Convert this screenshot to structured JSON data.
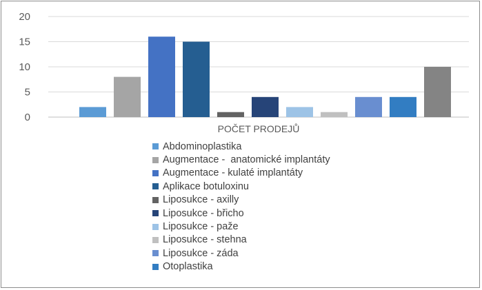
{
  "chart_data": {
    "type": "bar",
    "category_axis_label": "POČET PRODEJŮ",
    "ylim": [
      0,
      20
    ],
    "yticks": [
      "0",
      "5",
      "10",
      "15",
      "20"
    ],
    "grid": true,
    "legend_position": "bottom",
    "series": [
      {
        "name": "Abdominoplastika",
        "value": 2,
        "color": "#5b9bd5"
      },
      {
        "name": "Augmentace -  anatomické implantáty",
        "value": 8,
        "color": "#a5a5a5"
      },
      {
        "name": "Augmentace - kulaté implantáty",
        "value": 16,
        "color": "#4472c4"
      },
      {
        "name": "Aplikace botuloxinu",
        "value": 15,
        "color": "#255e91"
      },
      {
        "name": "Liposukce - axilly",
        "value": 1,
        "color": "#636363"
      },
      {
        "name": "Liposukce - břicho",
        "value": 4,
        "color": "#264478"
      },
      {
        "name": "Liposukce - paže",
        "value": 2,
        "color": "#9dc3e6"
      },
      {
        "name": "Liposukce - stehna",
        "value": 1,
        "color": "#c0c0c0"
      },
      {
        "name": "Liposukce - záda",
        "value": 4,
        "color": "#698ed0"
      },
      {
        "name": "Otoplastika",
        "value": 4,
        "color": "#327dc2"
      },
      {
        "name": "",
        "value": 10,
        "color": "#848484"
      }
    ]
  }
}
